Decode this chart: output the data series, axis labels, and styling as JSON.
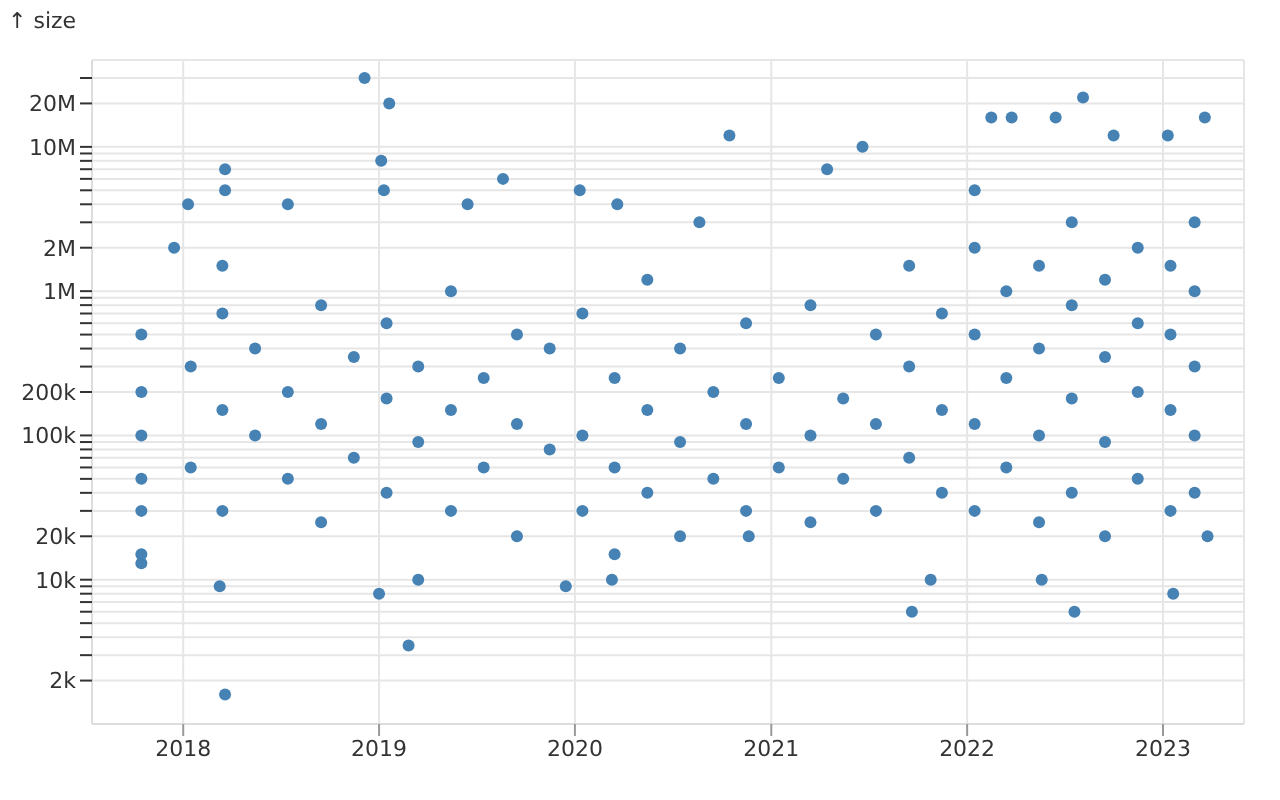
{
  "chart_data": {
    "type": "scatter",
    "ylabel": "↑ size",
    "color": "#4682b4",
    "marker": "circle",
    "grid": true,
    "log": "y",
    "xlim": [
      "2017-07-15",
      "2023-06-01"
    ],
    "xticks": [
      "2018",
      "2019",
      "2020",
      "2021",
      "2022",
      "2023"
    ],
    "ylim": [
      1000,
      40000000
    ],
    "yticks": [
      {
        "value": 2000,
        "label": "2k"
      },
      {
        "value": 3000,
        "label": null
      },
      {
        "value": 4000,
        "label": null
      },
      {
        "value": 5000,
        "label": null
      },
      {
        "value": 6000,
        "label": null
      },
      {
        "value": 7000,
        "label": null
      },
      {
        "value": 8000,
        "label": null
      },
      {
        "value": 9000,
        "label": null
      },
      {
        "value": 10000,
        "label": "10k"
      },
      {
        "value": 20000,
        "label": "20k"
      },
      {
        "value": 30000,
        "label": null
      },
      {
        "value": 40000,
        "label": null
      },
      {
        "value": 50000,
        "label": null
      },
      {
        "value": 60000,
        "label": null
      },
      {
        "value": 70000,
        "label": null
      },
      {
        "value": 80000,
        "label": null
      },
      {
        "value": 90000,
        "label": null
      },
      {
        "value": 100000,
        "label": "100k"
      },
      {
        "value": 200000,
        "label": "200k"
      },
      {
        "value": 300000,
        "label": null
      },
      {
        "value": 400000,
        "label": null
      },
      {
        "value": 500000,
        "label": null
      },
      {
        "value": 600000,
        "label": null
      },
      {
        "value": 700000,
        "label": null
      },
      {
        "value": 800000,
        "label": null
      },
      {
        "value": 900000,
        "label": null
      },
      {
        "value": 1000000,
        "label": "1M"
      },
      {
        "value": 2000000,
        "label": "2M"
      },
      {
        "value": 3000000,
        "label": null
      },
      {
        "value": 4000000,
        "label": null
      },
      {
        "value": 5000000,
        "label": null
      },
      {
        "value": 6000000,
        "label": null
      },
      {
        "value": 7000000,
        "label": null
      },
      {
        "value": 8000000,
        "label": null
      },
      {
        "value": 9000000,
        "label": null
      },
      {
        "value": 10000000,
        "label": "10M"
      },
      {
        "value": 20000000,
        "label": "20M"
      },
      {
        "value": 30000000,
        "label": null
      }
    ],
    "x": [
      "2017-10-15",
      "2017-10-15",
      "2017-10-15",
      "2017-10-15",
      "2017-10-15",
      "2017-10-15",
      "2017-10-15",
      "2017-12-15",
      "2018-01-10",
      "2018-03-20",
      "2018-03-10",
      "2018-03-20",
      "2018-03-20",
      "2018-03-15",
      "2018-07-15",
      "2018-12-05",
      "2019-01-20",
      "2019-01-05",
      "2019-01-10",
      "2019-02-25",
      "2019-01-01",
      "2019-03-15",
      "2019-06-15",
      "2019-08-20",
      "2020-01-10",
      "2020-03-20",
      "2019-12-15",
      "2020-03-10",
      "2020-10-15",
      "2020-08-20",
      "2020-11-20",
      "2021-06-20",
      "2021-04-15",
      "2021-09-20",
      "2021-10-25",
      "2022-01-15",
      "2022-02-15",
      "2022-03-25",
      "2022-06-15",
      "2022-08-05",
      "2022-10-01",
      "2023-01-10",
      "2023-03-20",
      "2022-07-20",
      "2022-05-20",
      "2023-01-20",
      "2023-03-25",
      "2018-01-15",
      "2018-01-15",
      "2018-03-15",
      "2018-03-15",
      "2018-03-15",
      "2018-05-15",
      "2018-05-15",
      "2018-07-15",
      "2018-07-15",
      "2018-09-15",
      "2018-09-15",
      "2018-09-15",
      "2018-11-15",
      "2018-11-15",
      "2019-01-15",
      "2019-01-15",
      "2019-01-15",
      "2019-03-15",
      "2019-03-15",
      "2019-05-15",
      "2019-05-15",
      "2019-05-15",
      "2019-07-15",
      "2019-07-15",
      "2019-09-15",
      "2019-09-15",
      "2019-09-15",
      "2019-11-15",
      "2019-11-15",
      "2020-01-15",
      "2020-01-15",
      "2020-01-15",
      "2020-03-15",
      "2020-03-15",
      "2020-03-15",
      "2020-05-15",
      "2020-05-15",
      "2020-05-15",
      "2020-07-15",
      "2020-07-15",
      "2020-07-15",
      "2020-09-15",
      "2020-09-15",
      "2020-11-15",
      "2020-11-15",
      "2020-11-15",
      "2021-01-15",
      "2021-01-15",
      "2021-03-15",
      "2021-03-15",
      "2021-03-15",
      "2021-05-15",
      "2021-05-15",
      "2021-07-15",
      "2021-07-15",
      "2021-07-15",
      "2021-09-15",
      "2021-09-15",
      "2021-09-15",
      "2021-11-15",
      "2021-11-15",
      "2021-11-15",
      "2022-01-15",
      "2022-01-15",
      "2022-01-15",
      "2022-01-15",
      "2022-03-15",
      "2022-03-15",
      "2022-03-15",
      "2022-05-15",
      "2022-05-15",
      "2022-05-15",
      "2022-05-15",
      "2022-07-15",
      "2022-07-15",
      "2022-07-15",
      "2022-07-15",
      "2022-09-15",
      "2022-09-15",
      "2022-09-15",
      "2022-09-15",
      "2022-11-15",
      "2022-11-15",
      "2022-11-15",
      "2022-11-15",
      "2023-01-15",
      "2023-01-15",
      "2023-01-15",
      "2023-01-15",
      "2023-03-01",
      "2023-03-01",
      "2023-03-01",
      "2023-03-01",
      "2023-03-01"
    ],
    "values": [
      13000,
      15000,
      30000,
      50000,
      100000,
      200000,
      500000,
      2000000,
      4000000,
      1600,
      9000,
      7000000,
      5000000,
      1500000,
      4000000,
      30000000,
      20000000,
      8000000,
      5000000,
      3500,
      8000,
      10000,
      4000000,
      6000000,
      5000000,
      4000000,
      9000,
      10000,
      12000000,
      3000000,
      20000,
      10000000,
      7000000,
      6000,
      10000,
      5000000,
      16000000,
      16000000,
      16000000,
      22000000,
      12000000,
      12000000,
      16000000,
      6000,
      10000,
      8000,
      20000,
      60000,
      300000,
      30000,
      150000,
      700000,
      100000,
      400000,
      50000,
      200000,
      25000,
      120000,
      800000,
      70000,
      350000,
      40000,
      180000,
      600000,
      90000,
      300000,
      30000,
      150000,
      1000000,
      60000,
      250000,
      20000,
      120000,
      500000,
      80000,
      400000,
      30000,
      100000,
      700000,
      15000,
      60000,
      250000,
      40000,
      150000,
      1200000,
      20000,
      90000,
      400000,
      50000,
      200000,
      30000,
      120000,
      600000,
      60000,
      250000,
      25000,
      100000,
      800000,
      50000,
      180000,
      30000,
      120000,
      500000,
      70000,
      300000,
      1500000,
      40000,
      150000,
      700000,
      30000,
      120000,
      500000,
      2000000,
      60000,
      250000,
      1000000,
      25000,
      100000,
      400000,
      1500000,
      40000,
      180000,
      800000,
      3000000,
      20000,
      90000,
      350000,
      1200000,
      50000,
      200000,
      600000,
      2000000,
      30000,
      150000,
      500000,
      1500000,
      40000,
      100000,
      300000,
      1000000,
      3000000
    ]
  }
}
